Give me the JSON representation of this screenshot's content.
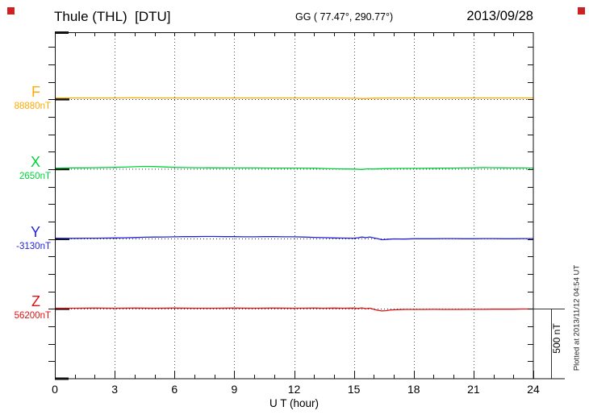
{
  "header": {
    "title": "Thule (THL)  [DTU]",
    "coords": "GG ( 77.47°, 290.77°)",
    "date": "2013/09/28"
  },
  "axes": {
    "x_label": "U T (hour)",
    "x_ticks": [
      0,
      3,
      6,
      9,
      12,
      15,
      18,
      21,
      24
    ],
    "x_range": [
      0,
      24
    ],
    "minor_tick_every_hours": 1,
    "scale_bar": "500 nT",
    "plotted_at": "Plotted at 2013/11/12 04:54 UT"
  },
  "ui": {
    "marker_color": "#cc2222",
    "axis_color": "#111111",
    "grid_color": "#555555",
    "baseline_dot_color": "#333333"
  },
  "chart_data": {
    "type": "line",
    "title": "Thule (THL) [DTU] magnetogram 2013/09/28",
    "xlabel": "U T (hour)",
    "x_range": [
      0,
      24
    ],
    "grid": "vertical dotted gridlines every 3 hours; dotted horizontal baseline per channel",
    "division_nT": 500,
    "legend_position": "left margin channel labels",
    "series": [
      {
        "name": "F",
        "label": "F",
        "baseline_label": "88880nT",
        "baseline_nT": 88880,
        "color": "#ffaa00",
        "points": [
          [
            0,
            10
          ],
          [
            1,
            10
          ],
          [
            2,
            10
          ],
          [
            3,
            10
          ],
          [
            4,
            11
          ],
          [
            5,
            10
          ],
          [
            6,
            10
          ],
          [
            7,
            10
          ],
          [
            8,
            10
          ],
          [
            9,
            10
          ],
          [
            10,
            10
          ],
          [
            11,
            10
          ],
          [
            12,
            10
          ],
          [
            13,
            10
          ],
          [
            14,
            10
          ],
          [
            15,
            8
          ],
          [
            15.5,
            6
          ],
          [
            16,
            9
          ],
          [
            17,
            10
          ],
          [
            18,
            10
          ],
          [
            19,
            10
          ],
          [
            20,
            10
          ],
          [
            21,
            10
          ],
          [
            22,
            10
          ],
          [
            23,
            10
          ],
          [
            24,
            10
          ]
        ]
      },
      {
        "name": "X",
        "label": "X",
        "baseline_label": "2650nT",
        "baseline_nT": 2650,
        "color": "#00d23c",
        "points": [
          [
            0,
            8
          ],
          [
            0.5,
            9
          ],
          [
            1,
            10
          ],
          [
            1.5,
            10
          ],
          [
            2,
            11
          ],
          [
            2.5,
            12
          ],
          [
            3,
            13
          ],
          [
            3.5,
            15
          ],
          [
            4,
            18
          ],
          [
            4.5,
            20
          ],
          [
            5,
            19
          ],
          [
            5.5,
            16
          ],
          [
            6,
            13
          ],
          [
            6.5,
            12
          ],
          [
            7,
            11
          ],
          [
            8,
            10
          ],
          [
            9,
            9
          ],
          [
            10,
            9
          ],
          [
            11,
            8
          ],
          [
            12,
            8
          ],
          [
            13,
            7
          ],
          [
            13.5,
            5
          ],
          [
            14,
            3
          ],
          [
            14.5,
            2
          ],
          [
            15,
            1
          ],
          [
            15.4,
            -2
          ],
          [
            15.7,
            3
          ],
          [
            16,
            1
          ],
          [
            16.5,
            4
          ],
          [
            17,
            5
          ],
          [
            17.5,
            6
          ],
          [
            18,
            6
          ],
          [
            19,
            7
          ],
          [
            20,
            8
          ],
          [
            20.5,
            9
          ],
          [
            21,
            10
          ],
          [
            21.5,
            12
          ],
          [
            22,
            11
          ],
          [
            22.5,
            10
          ],
          [
            23,
            9
          ],
          [
            23.5,
            9
          ],
          [
            24,
            8
          ]
        ]
      },
      {
        "name": "Y",
        "label": "Y",
        "baseline_label": "-3130nT",
        "baseline_nT": -3130,
        "color": "#2222dd",
        "points": [
          [
            0,
            6
          ],
          [
            0.5,
            5
          ],
          [
            1,
            5
          ],
          [
            1.5,
            6
          ],
          [
            2,
            6
          ],
          [
            2.5,
            7
          ],
          [
            3,
            8
          ],
          [
            3.5,
            9
          ],
          [
            4,
            11
          ],
          [
            4.5,
            13
          ],
          [
            5,
            14
          ],
          [
            5.5,
            15
          ],
          [
            6,
            16
          ],
          [
            6.5,
            17
          ],
          [
            7,
            17
          ],
          [
            7.5,
            18
          ],
          [
            8,
            18
          ],
          [
            8.5,
            17
          ],
          [
            9,
            17
          ],
          [
            9.5,
            16
          ],
          [
            10,
            16
          ],
          [
            10.5,
            17
          ],
          [
            11,
            17
          ],
          [
            11.5,
            16
          ],
          [
            12,
            16
          ],
          [
            12.5,
            14
          ],
          [
            13,
            12
          ],
          [
            13.5,
            10
          ],
          [
            14,
            8
          ],
          [
            14.5,
            7
          ],
          [
            15,
            6
          ],
          [
            15.2,
            9
          ],
          [
            15.4,
            14
          ],
          [
            15.6,
            10
          ],
          [
            15.8,
            15
          ],
          [
            16,
            8
          ],
          [
            16.2,
            2
          ],
          [
            16.4,
            -5
          ],
          [
            16.6,
            -3
          ],
          [
            16.8,
            -1
          ],
          [
            17,
            1
          ],
          [
            17.5,
            0
          ],
          [
            18,
            2
          ],
          [
            18.5,
            2
          ],
          [
            19,
            2
          ],
          [
            19.5,
            3
          ],
          [
            20,
            3
          ],
          [
            20.5,
            2
          ],
          [
            21,
            2
          ],
          [
            21.5,
            3
          ],
          [
            22,
            3
          ],
          [
            22.5,
            2
          ],
          [
            23,
            2
          ],
          [
            23.5,
            3
          ],
          [
            24,
            3
          ]
        ]
      },
      {
        "name": "Z",
        "label": "Z",
        "baseline_label": "56200nT",
        "baseline_nT": 56200,
        "color": "#e01010",
        "points": [
          [
            0,
            5
          ],
          [
            1,
            5
          ],
          [
            2,
            6
          ],
          [
            3,
            5
          ],
          [
            4,
            6
          ],
          [
            5,
            5
          ],
          [
            6,
            6
          ],
          [
            7,
            5
          ],
          [
            8,
            5
          ],
          [
            9,
            6
          ],
          [
            10,
            5
          ],
          [
            11,
            6
          ],
          [
            12,
            5
          ],
          [
            13,
            6
          ],
          [
            13.5,
            5
          ],
          [
            14,
            6
          ],
          [
            14.5,
            5
          ],
          [
            15,
            6
          ],
          [
            15.2,
            3
          ],
          [
            15.4,
            7
          ],
          [
            15.6,
            2
          ],
          [
            15.8,
            5
          ],
          [
            16,
            -3
          ],
          [
            16.2,
            -10
          ],
          [
            16.4,
            -15
          ],
          [
            16.6,
            -13
          ],
          [
            16.8,
            -9
          ],
          [
            17,
            -7
          ],
          [
            17.3,
            -5
          ],
          [
            17.6,
            -4
          ],
          [
            18,
            -4
          ],
          [
            18.5,
            -4
          ],
          [
            19,
            -3
          ],
          [
            19.5,
            -4
          ],
          [
            20,
            -4
          ],
          [
            21,
            -3
          ],
          [
            21.5,
            -3
          ],
          [
            22,
            -2
          ],
          [
            22.5,
            -2
          ],
          [
            23,
            -2
          ],
          [
            23.5,
            -1
          ],
          [
            24,
            -1
          ]
        ]
      }
    ]
  }
}
